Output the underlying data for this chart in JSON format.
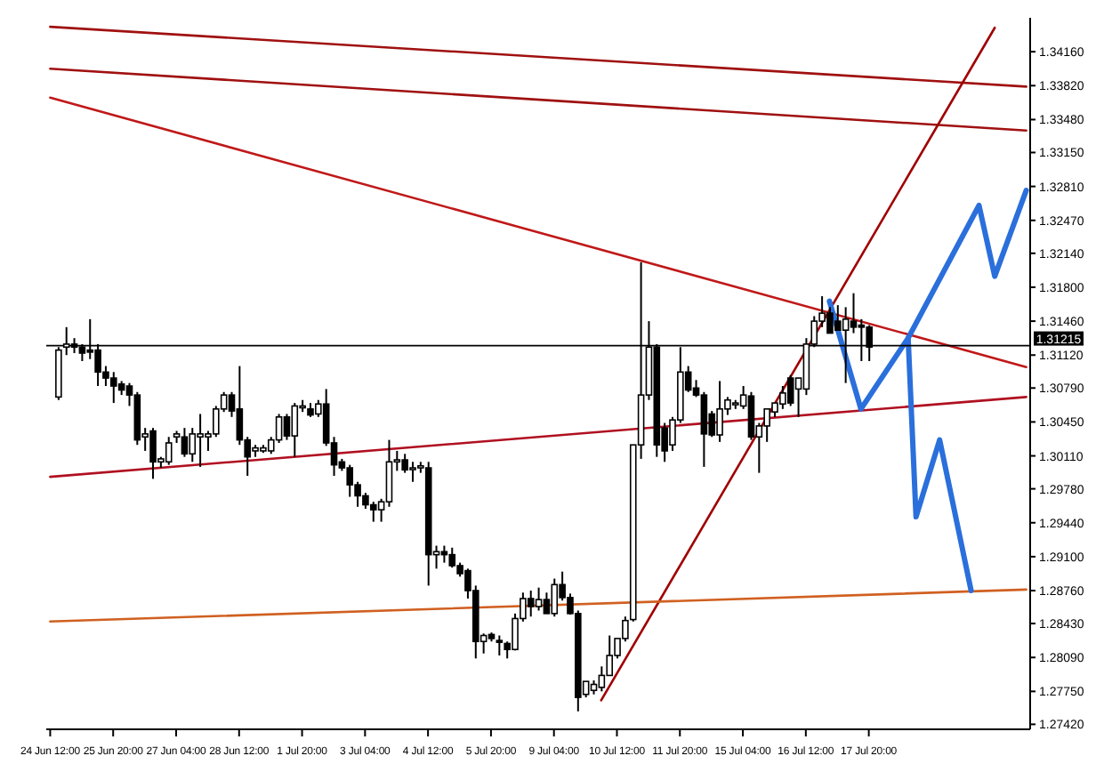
{
  "chart_data": {
    "type": "candlestick",
    "categories": [
      "24 Jun 12:00",
      null,
      null,
      null,
      null,
      null,
      null,
      null,
      "25 Jun 20:00",
      null,
      null,
      null,
      null,
      null,
      null,
      null,
      "27 Jun 04:00",
      null,
      null,
      null,
      null,
      null,
      null,
      null,
      "28 Jun 12:00",
      null,
      null,
      null,
      null,
      null,
      null,
      null,
      "1 Jul 20:00",
      null,
      null,
      null,
      null,
      null,
      null,
      null,
      "3 Jul 04:00",
      null,
      null,
      null,
      null,
      null,
      null,
      null,
      "4 Jul 12:00",
      null,
      null,
      null,
      null,
      null,
      null,
      null,
      "5 Jul 20:00",
      null,
      null,
      null,
      null,
      null,
      null,
      null,
      "9 Jul 04:00",
      null,
      null,
      null,
      null,
      null,
      null,
      null,
      "10 Jul 12:00",
      null,
      null,
      null,
      null,
      null,
      null,
      null,
      "11 Jul 20:00",
      null,
      null,
      null,
      null,
      null,
      null,
      null,
      "15 Jul 04:00",
      null,
      null,
      null,
      null,
      null,
      null,
      null,
      "16 Jul 12:00",
      null,
      null,
      null,
      null,
      null,
      null,
      null,
      "17 Jul 20:00",
      null,
      null,
      null,
      null,
      null,
      null,
      null,
      null,
      null,
      null,
      null,
      null,
      null,
      null,
      null,
      null,
      null,
      null,
      null,
      null
    ],
    "ohlc": [
      null,
      [
        1.307,
        1.312,
        1.3067,
        1.3117
      ],
      [
        1.312,
        1.314,
        1.3112,
        1.3123
      ],
      [
        1.3123,
        1.3129,
        1.3114,
        1.312
      ],
      [
        1.312,
        1.3123,
        1.3106,
        1.3114
      ],
      [
        1.3117,
        1.3148,
        1.3108,
        1.3115
      ],
      [
        1.3117,
        1.3123,
        1.3081,
        1.3095
      ],
      [
        1.3095,
        1.3101,
        1.3081,
        1.3089
      ],
      [
        1.3089,
        1.3095,
        1.3064,
        1.3081
      ],
      [
        1.3083,
        1.3086,
        1.3072,
        1.3077
      ],
      [
        1.3081,
        1.3084,
        1.3061,
        1.3072
      ],
      [
        1.3072,
        1.3075,
        1.3022,
        1.3027
      ],
      [
        1.303,
        1.3039,
        1.3016,
        1.3033
      ],
      [
        1.3036,
        1.3039,
        1.2988,
        1.3005
      ],
      [
        1.3005,
        1.301,
        1.2999,
        1.3008
      ],
      [
        1.3005,
        1.303,
        1.3002,
        1.3024
      ],
      [
        1.303,
        1.3036,
        1.3024,
        1.3033
      ],
      [
        1.303,
        1.3039,
        1.301,
        1.3013
      ],
      [
        1.3013,
        1.3039,
        1.3005,
        1.3033
      ],
      [
        1.303,
        1.3053,
        1.3,
        1.3033
      ],
      [
        1.303,
        1.3036,
        1.3016,
        1.3033
      ],
      [
        1.3033,
        1.3061,
        1.303,
        1.3058
      ],
      [
        1.3058,
        1.3075,
        1.3055,
        1.3072
      ],
      [
        1.3072,
        1.3075,
        1.305,
        1.3056
      ],
      [
        1.3058,
        1.3101,
        1.3022,
        1.3027
      ],
      [
        1.3027,
        1.303,
        1.2991,
        1.301
      ],
      [
        1.3016,
        1.3022,
        1.301,
        1.3019
      ],
      [
        1.3016,
        1.3022,
        1.3014,
        1.3019
      ],
      [
        1.3016,
        1.303,
        1.3013,
        1.3027
      ],
      [
        1.3027,
        1.3053,
        1.3024,
        1.305
      ],
      [
        1.305,
        1.3053,
        1.3027,
        1.3031
      ],
      [
        1.3031,
        1.3064,
        1.301,
        1.3061
      ],
      [
        1.3061,
        1.3067,
        1.3055,
        1.3061
      ],
      [
        1.3058,
        1.3064,
        1.305,
        1.3052
      ],
      [
        1.3053,
        1.3067,
        1.305,
        1.3063
      ],
      [
        1.3063,
        1.3078,
        1.3021,
        1.3024
      ],
      [
        1.3024,
        1.303,
        1.2991,
        1.3002
      ],
      [
        1.3005,
        1.3008,
        1.2996,
        1.2999
      ],
      [
        1.2999,
        1.3002,
        1.297,
        1.2982
      ],
      [
        1.2982,
        1.2985,
        1.296,
        1.2971
      ],
      [
        1.2971,
        1.2974,
        1.2958,
        1.2962
      ],
      [
        1.2962,
        1.2965,
        1.2945,
        1.2957
      ],
      [
        1.2957,
        1.2968,
        1.2945,
        1.2965
      ],
      [
        1.2965,
        1.3027,
        1.296,
        1.3005
      ],
      [
        1.3005,
        1.3016,
        1.2996,
        1.3007
      ],
      [
        1.3007,
        1.3013,
        1.2994,
        1.2997
      ],
      [
        1.2998,
        1.3005,
        1.2985,
        1.2999
      ],
      [
        1.2999,
        1.3005,
        1.2994,
        1.3001
      ],
      [
        1.2999,
        1.3005,
        1.2881,
        1.2912
      ],
      [
        1.2912,
        1.2921,
        1.2898,
        1.2915
      ],
      [
        1.2915,
        1.2921,
        1.2904,
        1.2912
      ],
      [
        1.2912,
        1.2919,
        1.2899,
        1.2901
      ],
      [
        1.2901,
        1.2904,
        1.289,
        1.2893
      ],
      [
        1.2896,
        1.2898,
        1.2868,
        1.2876
      ],
      [
        1.2876,
        1.2881,
        1.2808,
        1.2825
      ],
      [
        1.2825,
        1.2833,
        1.2813,
        1.2831
      ],
      [
        1.2832,
        1.2834,
        1.2825,
        1.2828
      ],
      [
        1.2826,
        1.2831,
        1.2811,
        1.2825
      ],
      [
        1.2823,
        1.2825,
        1.2808,
        1.2817
      ],
      [
        1.2817,
        1.2853,
        1.2816,
        1.2848
      ],
      [
        1.2848,
        1.2874,
        1.2845,
        1.2868
      ],
      [
        1.2868,
        1.2876,
        1.285,
        1.286
      ],
      [
        1.286,
        1.2879,
        1.2856,
        1.2867
      ],
      [
        1.2867,
        1.2874,
        1.2853,
        1.2853
      ],
      [
        1.2853,
        1.2888,
        1.285,
        1.2882
      ],
      [
        1.2882,
        1.2895,
        1.2866,
        1.2869
      ],
      [
        1.2869,
        1.2873,
        1.2852,
        1.2853
      ],
      [
        1.2853,
        1.2856,
        1.2755,
        1.2769
      ],
      [
        1.2772,
        1.2785,
        1.2769,
        1.2785
      ],
      [
        1.2776,
        1.2786,
        1.2772,
        1.2782
      ],
      [
        1.2779,
        1.28,
        1.2775,
        1.2791
      ],
      [
        1.2791,
        1.2831,
        1.2791,
        1.2811
      ],
      [
        1.2811,
        1.2828,
        1.2808,
        1.2828
      ],
      [
        1.2828,
        1.285,
        1.2825,
        1.2846
      ],
      [
        1.2847,
        1.3022,
        1.2845,
        1.3022
      ],
      [
        1.3022,
        1.3205,
        1.3008,
        1.3072
      ],
      [
        1.3072,
        1.3146,
        1.3067,
        1.312
      ],
      [
        1.312,
        1.3123,
        1.301,
        1.3022
      ],
      [
        1.3039,
        1.3044,
        1.3005,
        1.3016
      ],
      [
        1.3022,
        1.305,
        1.3016,
        1.3047
      ],
      [
        1.3047,
        1.312,
        1.3044,
        1.3095
      ],
      [
        1.3095,
        1.3101,
        1.3075,
        1.3077
      ],
      [
        1.3079,
        1.3087,
        1.307,
        1.3072
      ],
      [
        1.3072,
        1.3075,
        1.3,
        1.3033
      ],
      [
        1.3053,
        1.3056,
        1.303,
        1.3032
      ],
      [
        1.3032,
        1.3086,
        1.3025,
        1.3058
      ],
      [
        1.3058,
        1.307,
        1.3052,
        1.3067
      ],
      [
        1.3064,
        1.3067,
        1.3058,
        1.3064
      ],
      [
        1.3061,
        1.3081,
        1.3058,
        1.3072
      ],
      [
        1.3071,
        1.3075,
        1.3027,
        1.303
      ],
      [
        1.303,
        1.3044,
        1.2994,
        1.3041
      ],
      [
        1.3041,
        1.3058,
        1.3025,
        1.3058
      ],
      [
        1.3055,
        1.3064,
        1.305,
        1.3064
      ],
      [
        1.3063,
        1.3081,
        1.3058,
        1.3074
      ],
      [
        1.3089,
        1.3092,
        1.3061,
        1.3064
      ],
      [
        1.3078,
        1.3089,
        1.305,
        1.3089
      ],
      [
        1.3078,
        1.3129,
        1.3072,
        1.3123
      ],
      [
        1.3123,
        1.3151,
        1.312,
        1.3146
      ],
      [
        1.3146,
        1.3171,
        1.314,
        1.3154
      ],
      [
        1.3154,
        1.316,
        1.3134,
        1.3134
      ],
      [
        1.3146,
        1.3162,
        1.3137,
        1.3137
      ],
      [
        1.3137,
        1.316,
        1.3084,
        1.3148
      ],
      [
        1.3146,
        1.3174,
        1.3134,
        1.314
      ],
      [
        1.3142,
        1.3148,
        1.3106,
        1.314
      ],
      [
        1.314,
        1.3142,
        1.3106,
        1.312
      ],
      null,
      null,
      null,
      null,
      null,
      null,
      null,
      null,
      null,
      null,
      null,
      null,
      null,
      null,
      null,
      null,
      null,
      null,
      null,
      null
    ],
    "series": [
      {
        "type": "line",
        "color": "#a01010",
        "values": [
          1.3441,
          null,
          null,
          null,
          null,
          null,
          null,
          null,
          null,
          null,
          null,
          null,
          null,
          null,
          null,
          null,
          null,
          null,
          null,
          null,
          null,
          null,
          null,
          null,
          null,
          null,
          null,
          null,
          null,
          null,
          null,
          null,
          null,
          null,
          null,
          null,
          null,
          null,
          null,
          null,
          null,
          null,
          null,
          null,
          null,
          null,
          null,
          null,
          null,
          null,
          null,
          null,
          null,
          null,
          null,
          null,
          null,
          null,
          null,
          null,
          null,
          null,
          null,
          null,
          null,
          null,
          null,
          null,
          null,
          null,
          null,
          null,
          null,
          null,
          null,
          null,
          null,
          null,
          null,
          null,
          null,
          null,
          null,
          null,
          null,
          null,
          null,
          null,
          null,
          null,
          null,
          null,
          null,
          null,
          null,
          null,
          null,
          null,
          null,
          null,
          null,
          null,
          null,
          null,
          null,
          null,
          null,
          null,
          null,
          null,
          null,
          null,
          null,
          null,
          null,
          null,
          null,
          null,
          null,
          null,
          null,
          null,
          null,
          null,
          1.3381
        ]
      },
      {
        "type": "line",
        "color": "#a01010",
        "values": [
          1.3399,
          null,
          null,
          null,
          null,
          null,
          null,
          null,
          null,
          null,
          null,
          null,
          null,
          null,
          null,
          null,
          null,
          null,
          null,
          null,
          null,
          null,
          null,
          null,
          null,
          null,
          null,
          null,
          null,
          null,
          null,
          null,
          null,
          null,
          null,
          null,
          null,
          null,
          null,
          null,
          null,
          null,
          null,
          null,
          null,
          null,
          null,
          null,
          null,
          null,
          null,
          null,
          null,
          null,
          null,
          null,
          null,
          null,
          null,
          null,
          null,
          null,
          null,
          null,
          null,
          null,
          null,
          null,
          null,
          null,
          null,
          null,
          null,
          null,
          null,
          null,
          null,
          null,
          null,
          null,
          null,
          null,
          null,
          null,
          null,
          null,
          null,
          null,
          null,
          null,
          null,
          null,
          null,
          null,
          null,
          null,
          null,
          null,
          null,
          null,
          null,
          null,
          null,
          null,
          null,
          null,
          null,
          null,
          null,
          null,
          null,
          null,
          null,
          null,
          null,
          null,
          null,
          null,
          null,
          null,
          null,
          null,
          null,
          null,
          1.3337
        ]
      },
      {
        "type": "line",
        "color": "#c01818",
        "values": [
          1.337,
          null,
          null,
          null,
          null,
          null,
          null,
          null,
          null,
          null,
          null,
          null,
          null,
          null,
          null,
          null,
          null,
          null,
          null,
          null,
          null,
          null,
          null,
          null,
          null,
          null,
          null,
          null,
          null,
          null,
          null,
          null,
          null,
          null,
          null,
          null,
          null,
          null,
          null,
          null,
          null,
          null,
          null,
          null,
          null,
          null,
          null,
          null,
          null,
          null,
          null,
          null,
          null,
          null,
          null,
          null,
          null,
          null,
          null,
          null,
          null,
          null,
          null,
          null,
          null,
          null,
          null,
          null,
          null,
          null,
          null,
          null,
          null,
          null,
          null,
          null,
          null,
          null,
          null,
          null,
          null,
          null,
          null,
          null,
          null,
          null,
          null,
          null,
          null,
          null,
          null,
          null,
          null,
          null,
          null,
          null,
          null,
          null,
          null,
          null,
          null,
          null,
          null,
          null,
          null,
          null,
          null,
          null,
          null,
          null,
          null,
          null,
          null,
          null,
          null,
          null,
          null,
          null,
          null,
          null,
          null,
          null,
          null,
          null,
          1.31
        ]
      },
      {
        "type": "line",
        "color": "#b01020",
        "values": [
          1.299,
          null,
          null,
          null,
          null,
          null,
          null,
          null,
          null,
          null,
          null,
          null,
          null,
          null,
          null,
          null,
          null,
          null,
          null,
          null,
          null,
          null,
          null,
          null,
          null,
          null,
          null,
          null,
          null,
          null,
          null,
          null,
          null,
          null,
          null,
          null,
          null,
          null,
          null,
          null,
          null,
          null,
          null,
          null,
          null,
          null,
          null,
          null,
          null,
          null,
          null,
          null,
          null,
          null,
          null,
          null,
          null,
          null,
          null,
          null,
          null,
          null,
          null,
          null,
          null,
          null,
          null,
          null,
          null,
          null,
          null,
          null,
          null,
          null,
          null,
          null,
          null,
          null,
          null,
          null,
          null,
          null,
          null,
          null,
          null,
          null,
          null,
          null,
          null,
          null,
          null,
          null,
          null,
          null,
          null,
          null,
          null,
          null,
          null,
          null,
          null,
          null,
          null,
          null,
          null,
          null,
          null,
          null,
          null,
          null,
          null,
          null,
          null,
          null,
          null,
          null,
          null,
          null,
          null,
          null,
          null,
          null,
          null,
          null,
          1.307
        ]
      },
      {
        "type": "line",
        "color": "#a00000",
        "values": [
          null,
          null,
          null,
          null,
          null,
          null,
          null,
          null,
          null,
          null,
          null,
          null,
          null,
          null,
          null,
          null,
          null,
          null,
          null,
          null,
          null,
          null,
          null,
          null,
          null,
          null,
          null,
          null,
          null,
          null,
          null,
          null,
          null,
          null,
          null,
          null,
          null,
          null,
          null,
          null,
          null,
          null,
          null,
          null,
          null,
          null,
          null,
          null,
          null,
          null,
          null,
          null,
          null,
          null,
          null,
          null,
          null,
          null,
          null,
          null,
          null,
          null,
          null,
          null,
          null,
          null,
          null,
          null,
          null,
          null,
          1.2766,
          null,
          null,
          null,
          null,
          null,
          null,
          null,
          null,
          null,
          null,
          null,
          null,
          null,
          null,
          null,
          null,
          null,
          null,
          null,
          null,
          null,
          null,
          null,
          null,
          null,
          null,
          null,
          null,
          null,
          null,
          null,
          null,
          null,
          null,
          null,
          null,
          null,
          null,
          null,
          null,
          null,
          null,
          null,
          null,
          null,
          null,
          null,
          null,
          null,
          1.344,
          null,
          null,
          null,
          null
        ]
      },
      {
        "type": "line",
        "color": "#d06020",
        "values": [
          1.2845,
          null,
          null,
          null,
          null,
          null,
          null,
          null,
          null,
          null,
          null,
          null,
          null,
          null,
          null,
          null,
          null,
          null,
          null,
          null,
          null,
          null,
          null,
          null,
          null,
          null,
          null,
          null,
          null,
          null,
          null,
          null,
          null,
          null,
          null,
          null,
          null,
          null,
          null,
          null,
          null,
          null,
          null,
          null,
          null,
          null,
          null,
          null,
          null,
          null,
          null,
          null,
          null,
          null,
          null,
          null,
          null,
          null,
          null,
          null,
          null,
          null,
          null,
          null,
          null,
          null,
          null,
          null,
          null,
          null,
          null,
          null,
          null,
          null,
          null,
          null,
          null,
          null,
          null,
          null,
          null,
          null,
          null,
          null,
          null,
          null,
          null,
          null,
          null,
          null,
          null,
          null,
          null,
          null,
          null,
          null,
          null,
          null,
          null,
          null,
          null,
          null,
          null,
          null,
          null,
          null,
          null,
          null,
          null,
          null,
          null,
          null,
          null,
          null,
          null,
          null,
          null,
          null,
          null,
          null,
          null,
          null,
          null,
          null,
          1.2877
        ]
      },
      {
        "type": "line",
        "color": "#2a6fdb",
        "values": [
          null,
          null,
          null,
          null,
          null,
          null,
          null,
          null,
          null,
          null,
          null,
          null,
          null,
          null,
          null,
          null,
          null,
          null,
          null,
          null,
          null,
          null,
          null,
          null,
          null,
          null,
          null,
          null,
          null,
          null,
          null,
          null,
          null,
          null,
          null,
          null,
          null,
          null,
          null,
          null,
          null,
          null,
          null,
          null,
          null,
          null,
          null,
          null,
          null,
          null,
          null,
          null,
          null,
          null,
          null,
          null,
          null,
          null,
          null,
          null,
          null,
          null,
          null,
          null,
          null,
          null,
          null,
          null,
          null,
          null,
          null,
          null,
          null,
          null,
          null,
          null,
          null,
          null,
          null,
          null,
          null,
          null,
          null,
          null,
          null,
          null,
          null,
          null,
          null,
          null,
          null,
          null,
          null,
          null,
          null,
          null,
          null,
          null,
          null,
          1.3166,
          null,
          null,
          null,
          1.3058,
          null,
          null,
          null,
          null,
          null,
          1.3129,
          null,
          null,
          null,
          null,
          null,
          null,
          null,
          null,
          1.3262,
          null,
          1.3191,
          null,
          null,
          null,
          1.3277
        ]
      },
      {
        "type": "line",
        "color": "#2a6fdb",
        "values": [
          null,
          null,
          null,
          null,
          null,
          null,
          null,
          null,
          null,
          null,
          null,
          null,
          null,
          null,
          null,
          null,
          null,
          null,
          null,
          null,
          null,
          null,
          null,
          null,
          null,
          null,
          null,
          null,
          null,
          null,
          null,
          null,
          null,
          null,
          null,
          null,
          null,
          null,
          null,
          null,
          null,
          null,
          null,
          null,
          null,
          null,
          null,
          null,
          null,
          null,
          null,
          null,
          null,
          null,
          null,
          null,
          null,
          null,
          null,
          null,
          null,
          null,
          null,
          null,
          null,
          null,
          null,
          null,
          null,
          null,
          null,
          null,
          null,
          null,
          null,
          null,
          null,
          null,
          null,
          null,
          null,
          null,
          null,
          null,
          null,
          null,
          null,
          null,
          null,
          null,
          null,
          null,
          null,
          null,
          null,
          null,
          null,
          null,
          null,
          null,
          null,
          null,
          null,
          null,
          null,
          null,
          null,
          null,
          null,
          1.3129,
          1.295,
          null,
          null,
          1.3027,
          null,
          null,
          null,
          1.2876,
          null,
          null,
          null,
          null,
          null,
          null,
          null
        ]
      }
    ],
    "ylim": [
      1.2737,
      1.345
    ],
    "yticks": [
      {
        "value": 1.2742,
        "label": "1.27420"
      },
      {
        "value": 1.2775,
        "label": "1.27750"
      },
      {
        "value": 1.2809,
        "label": "1.28090"
      },
      {
        "value": 1.2843,
        "label": "1.28430"
      },
      {
        "value": 1.2876,
        "label": "1.28760"
      },
      {
        "value": 1.291,
        "label": "1.29100"
      },
      {
        "value": 1.2944,
        "label": "1.29440"
      },
      {
        "value": 1.2978,
        "label": "1.29780"
      },
      {
        "value": 1.3011,
        "label": "1.30110"
      },
      {
        "value": 1.3045,
        "label": "1.30450"
      },
      {
        "value": 1.3079,
        "label": "1.30790"
      },
      {
        "value": 1.3112,
        "label": "1.31120"
      },
      {
        "value": 1.3146,
        "label": "1.31460"
      },
      {
        "value": 1.318,
        "label": "1.31800"
      },
      {
        "value": 1.3214,
        "label": "1.32140"
      },
      {
        "value": 1.3247,
        "label": "1.32470"
      },
      {
        "value": 1.3281,
        "label": "1.32810"
      },
      {
        "value": 1.3315,
        "label": "1.33150"
      },
      {
        "value": 1.3348,
        "label": "1.33480"
      },
      {
        "value": 1.3382,
        "label": "1.33820"
      },
      {
        "value": 1.3416,
        "label": "1.34160"
      }
    ],
    "ref_lines": [
      {
        "axis": "y",
        "value": 1.31215,
        "label": "1.31215",
        "color": "#000000"
      }
    ],
    "grid": false,
    "legend": false
  }
}
